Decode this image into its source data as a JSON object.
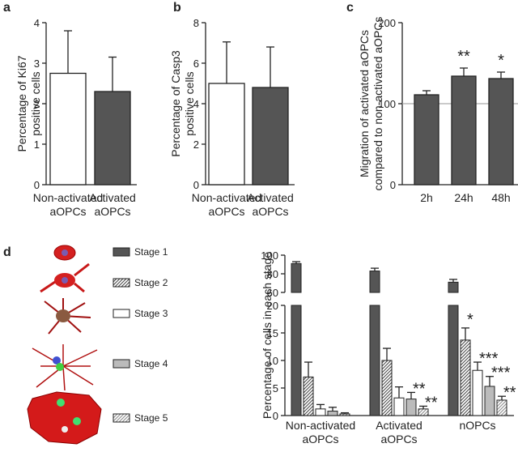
{
  "chart_data": [
    {
      "type": "bar",
      "label": "a",
      "ylabel": "Percentage of Ki67\npositive cells",
      "categories": [
        "Non-activated\naOPCs",
        "Activated\naOPCs"
      ],
      "values": [
        2.75,
        2.3
      ],
      "errors": [
        1.05,
        0.85
      ],
      "colors": [
        "#ffffff",
        "#555555"
      ],
      "ylim": [
        0,
        4
      ],
      "yticks": [
        0,
        1,
        2,
        3,
        4
      ]
    },
    {
      "type": "bar",
      "label": "b",
      "ylabel": "Percentage of Casp3\npositive cells",
      "categories": [
        "Non-activated\naOPCs",
        "Activated\naOPCs"
      ],
      "values": [
        5.0,
        4.8
      ],
      "errors": [
        2.05,
        2.0
      ],
      "colors": [
        "#ffffff",
        "#555555"
      ],
      "ylim": [
        0,
        8
      ],
      "yticks": [
        0,
        2,
        4,
        6,
        8
      ]
    },
    {
      "type": "bar",
      "label": "c",
      "ylabel": "Migration of activated aOPCs\ncompared to non-activated aOPCs",
      "categories": [
        "2h",
        "24h",
        "48h"
      ],
      "values": [
        111,
        134,
        131
      ],
      "errors": [
        5,
        10,
        8
      ],
      "colors": [
        "#555555",
        "#555555",
        "#555555"
      ],
      "annotations": [
        null,
        "**",
        "*"
      ],
      "reference_line": 100,
      "ylim": [
        0,
        200
      ],
      "yticks": [
        0,
        100,
        200
      ]
    },
    {
      "type": "grouped_bar",
      "label": "d",
      "ylabel": "Percentage of cells in each stage",
      "categories": [
        "Non-activated\naOPCs",
        "Activated\naOPCs",
        "nOPCs"
      ],
      "ylim": [
        0,
        100
      ],
      "ybreak": [
        20,
        60
      ],
      "yticks": [
        0,
        5,
        10,
        15,
        20,
        60,
        80,
        100
      ],
      "series": [
        {
          "name": "Stage 1",
          "color": "#555555",
          "hatch": false,
          "values": [
            91,
            83,
            71
          ],
          "errors": [
            2,
            3,
            3
          ],
          "annotations": [
            null,
            null,
            null
          ]
        },
        {
          "name": "Stage 2",
          "color": "#444444",
          "hatch": true,
          "values": [
            7,
            10,
            13.7
          ],
          "errors": [
            2.7,
            2.2,
            2.2
          ],
          "annotations": [
            null,
            null,
            "*"
          ]
        },
        {
          "name": "Stage 3",
          "color": "#ffffff",
          "hatch": false,
          "values": [
            1.2,
            3.2,
            8.2
          ],
          "errors": [
            0.8,
            2,
            1.5
          ],
          "annotations": [
            null,
            null,
            "***"
          ]
        },
        {
          "name": "Stage 4",
          "color": "#bbbbbb",
          "hatch": false,
          "values": [
            0.8,
            3,
            5.3
          ],
          "errors": [
            0.7,
            1.2,
            1.8
          ],
          "annotations": [
            null,
            "**",
            "***"
          ]
        },
        {
          "name": "Stage 5",
          "color": "#888888",
          "hatch": true,
          "values": [
            0.3,
            1.2,
            2.8
          ],
          "errors": [
            0.2,
            0.5,
            0.7
          ],
          "annotations": [
            null,
            "**",
            "**"
          ]
        }
      ]
    }
  ]
}
